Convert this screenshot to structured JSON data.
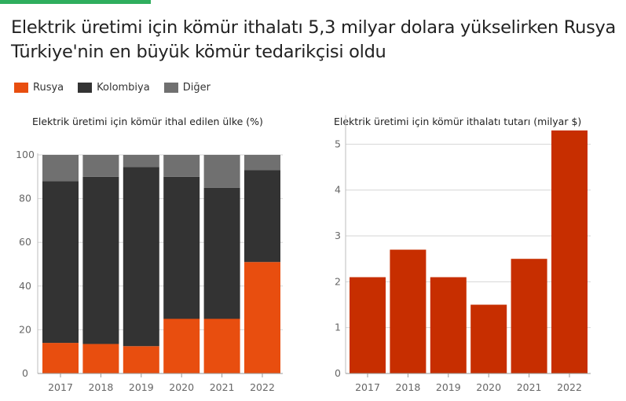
{
  "title": "Elektrik üretimi için kömür ithalatı 5,3 milyar dolara yükselirken Rusya Türkiye'nin en büyük kömür tedarikçisi oldu",
  "legend": [
    {
      "label": "Rusya",
      "color": "#e84e0f"
    },
    {
      "label": "Kolombiya",
      "color": "#333333"
    },
    {
      "label": "Diğer",
      "color": "#707070"
    }
  ],
  "colors": {
    "accent": "#2fae5e",
    "bar_right": "#c72e00"
  },
  "chart_data": [
    {
      "type": "bar",
      "stacked": true,
      "title": "Elektrik üretimi için kömür ithal edilen ülke (%)",
      "categories": [
        "2017",
        "2018",
        "2019",
        "2020",
        "2021",
        "2022"
      ],
      "series": [
        {
          "name": "Rusya",
          "color": "#e84e0f",
          "values": [
            14,
            13.5,
            12.5,
            25,
            25,
            51
          ]
        },
        {
          "name": "Kolombiya",
          "color": "#333333",
          "values": [
            74,
            76.5,
            82,
            65,
            60,
            42
          ]
        },
        {
          "name": "Diğer",
          "color": "#707070",
          "values": [
            12,
            10,
            5.5,
            10,
            15,
            7
          ]
        }
      ],
      "ylim": [
        0,
        100
      ],
      "yticks": [
        "0",
        "20",
        "40",
        "60",
        "80",
        "100"
      ],
      "grid": true
    },
    {
      "type": "bar",
      "title": "Elektrik üretimi için kömür ithalatı tutarı (milyar $)",
      "categories": [
        "2017",
        "2018",
        "2019",
        "2020",
        "2021",
        "2022"
      ],
      "values": [
        2.1,
        2.7,
        2.1,
        1.5,
        2.5,
        5.3
      ],
      "color": "#c72e00",
      "ylim": [
        0,
        5.6
      ],
      "yticks": [
        "0",
        "1",
        "2",
        "3",
        "4",
        "5"
      ],
      "grid": true
    }
  ]
}
